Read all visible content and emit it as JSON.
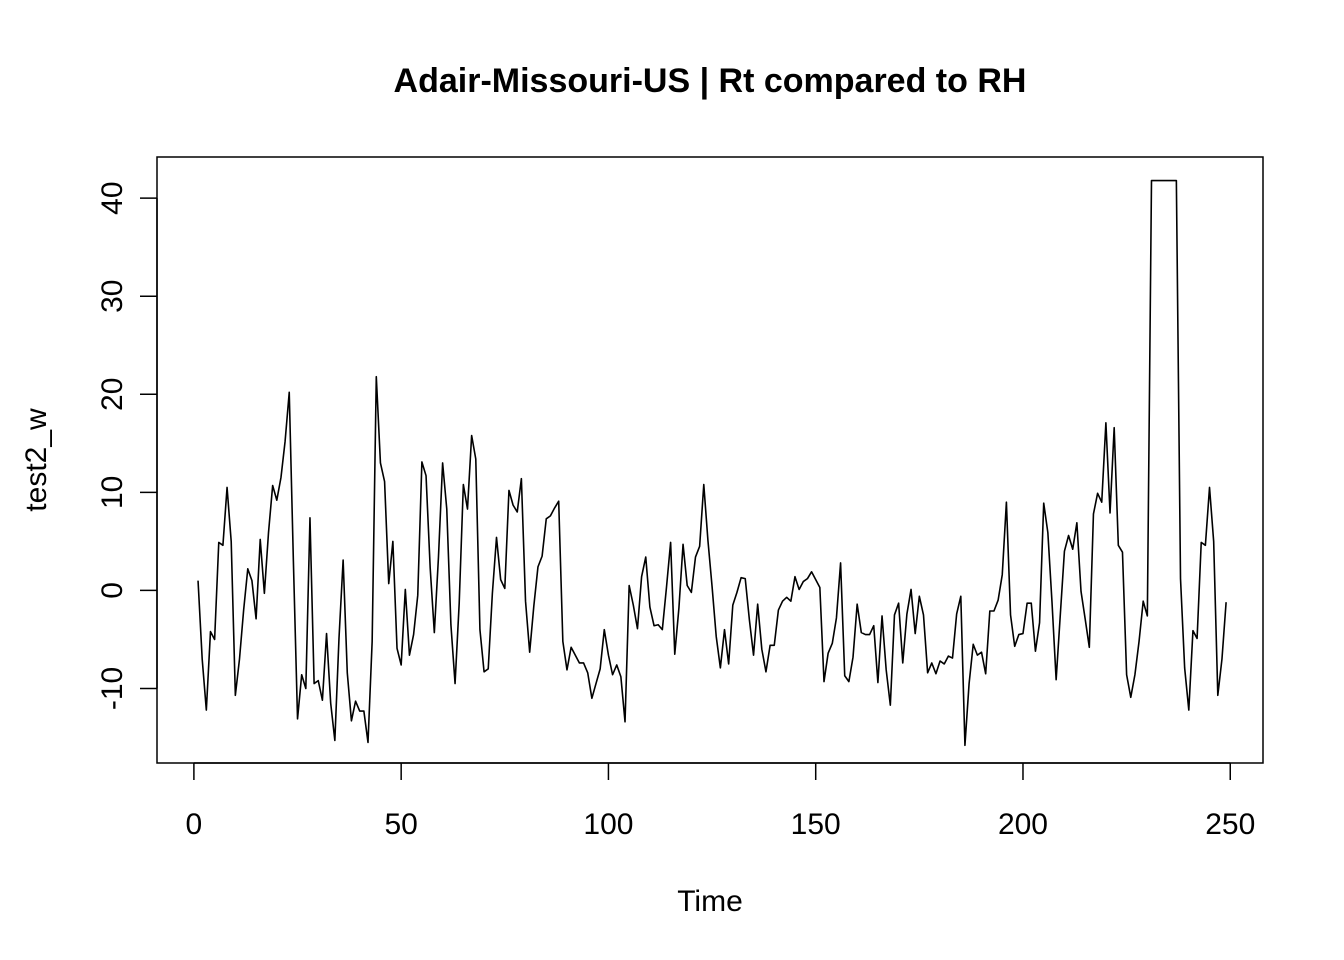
{
  "chart_data": {
    "type": "line",
    "title": "Adair-Missouri-US | Rt compared to RH",
    "xlabel": "Time",
    "ylabel": "test2_w",
    "xlim": [
      -8.9,
      257.9
    ],
    "ylim": [
      -17.6,
      44.2
    ],
    "x_ticks": [
      "0",
      "50",
      "100",
      "150",
      "200",
      "250"
    ],
    "y_ticks": [
      "-10",
      "0",
      "10",
      "20",
      "30",
      "40"
    ],
    "grid": false,
    "legend": "none",
    "line_color": "#000000",
    "x_start": 1,
    "series": [
      {
        "values": [
          1,
          -7,
          -12.2,
          -4.2,
          -5,
          4.9,
          4.6,
          10.5,
          5,
          -10.7,
          -7,
          -2,
          2.2,
          1,
          -2.9,
          5.2,
          -0.3,
          5.9,
          10.7,
          9.2,
          11.5,
          15.2,
          20.2,
          3,
          -13.1,
          -8.6,
          -10,
          7.4,
          -9.5,
          -9.2,
          -11.2,
          -4.4,
          -11.5,
          -15.3,
          -4.9,
          3.1,
          -8.4,
          -13.3,
          -11.3,
          -12.3,
          -12.3,
          -15.5,
          -5.2,
          21.8,
          13,
          11.1,
          0.7,
          5,
          -5.9,
          -7.6,
          0.1,
          -6.6,
          -4.5,
          -0.5,
          13.1,
          11.7,
          2.3,
          -4.3,
          3.4,
          13,
          8.3,
          -3.5,
          -9.5,
          -1.3,
          10.8,
          8.3,
          15.8,
          13.4,
          -4,
          -8.3,
          -8,
          -0.3,
          5.4,
          1.1,
          0.2,
          10.2,
          8.7,
          8,
          11.4,
          -1.1,
          -6.3,
          -1.6,
          2.4,
          3.5,
          7.3,
          7.6,
          8.4,
          9.1,
          -5.2,
          -8.1,
          -5.8,
          -6.6,
          -7.4,
          -7.4,
          -8.4,
          -11,
          -9.5,
          -8,
          -4,
          -6.6,
          -8.6,
          -7.6,
          -8.8,
          -13.4,
          0.5,
          -1.5,
          -3.9,
          1.4,
          3.4,
          -1.7,
          -3.6,
          -3.5,
          -4,
          0.3,
          4.9,
          -6.5,
          -1.8,
          4.7,
          0.5,
          -0.2,
          3.4,
          4.5,
          10.8,
          5.1,
          0.4,
          -4.7,
          -7.9,
          -4,
          -7.5,
          -1.5,
          -0.2,
          1.3,
          1.2,
          -3,
          -6.6,
          -1.4,
          -6,
          -8.3,
          -5.6,
          -5.6,
          -2,
          -1.1,
          -0.7,
          -1.1,
          1.4,
          0.1,
          0.9,
          1.2,
          1.9,
          1.1,
          0.3,
          -9.3,
          -6.4,
          -5.4,
          -2.8,
          2.8,
          -8.7,
          -9.3,
          -6.8,
          -1.4,
          -4.3,
          -4.5,
          -4.5,
          -3.6,
          -9.4,
          -2.6,
          -8.1,
          -11.7,
          -2.5,
          -1.3,
          -7.4,
          -2.4,
          0.1,
          -4.4,
          -0.6,
          -2.5,
          -8.4,
          -7.4,
          -8.5,
          -7.2,
          -7.5,
          -6.7,
          -6.9,
          -2.4,
          -0.6,
          -15.8,
          -9.5,
          -5.5,
          -6.6,
          -6.3,
          -8.5,
          -2.1,
          -2.1,
          -1,
          1.6,
          9,
          -2.5,
          -5.7,
          -4.5,
          -4.4,
          -1.3,
          -1.3,
          -6.2,
          -3.3,
          8.9,
          5.9,
          -1.2,
          -9.1,
          -2.5,
          4,
          5.6,
          4.2,
          6.9,
          -0.1,
          -2.9,
          -5.8,
          7.8,
          9.9,
          9,
          17.1,
          7.9,
          16.6,
          4.6,
          3.9,
          -8.6,
          -10.9,
          -8.6,
          -5.2,
          -1.1,
          -2.6,
          41.8,
          41.8,
          41.8,
          41.8,
          41.8,
          41.8,
          41.8,
          1.2,
          -7.9,
          -12.2,
          -4.1,
          -4.9,
          4.9,
          4.6,
          10.5,
          5,
          -10.7,
          -7,
          -1.2
        ]
      }
    ]
  }
}
